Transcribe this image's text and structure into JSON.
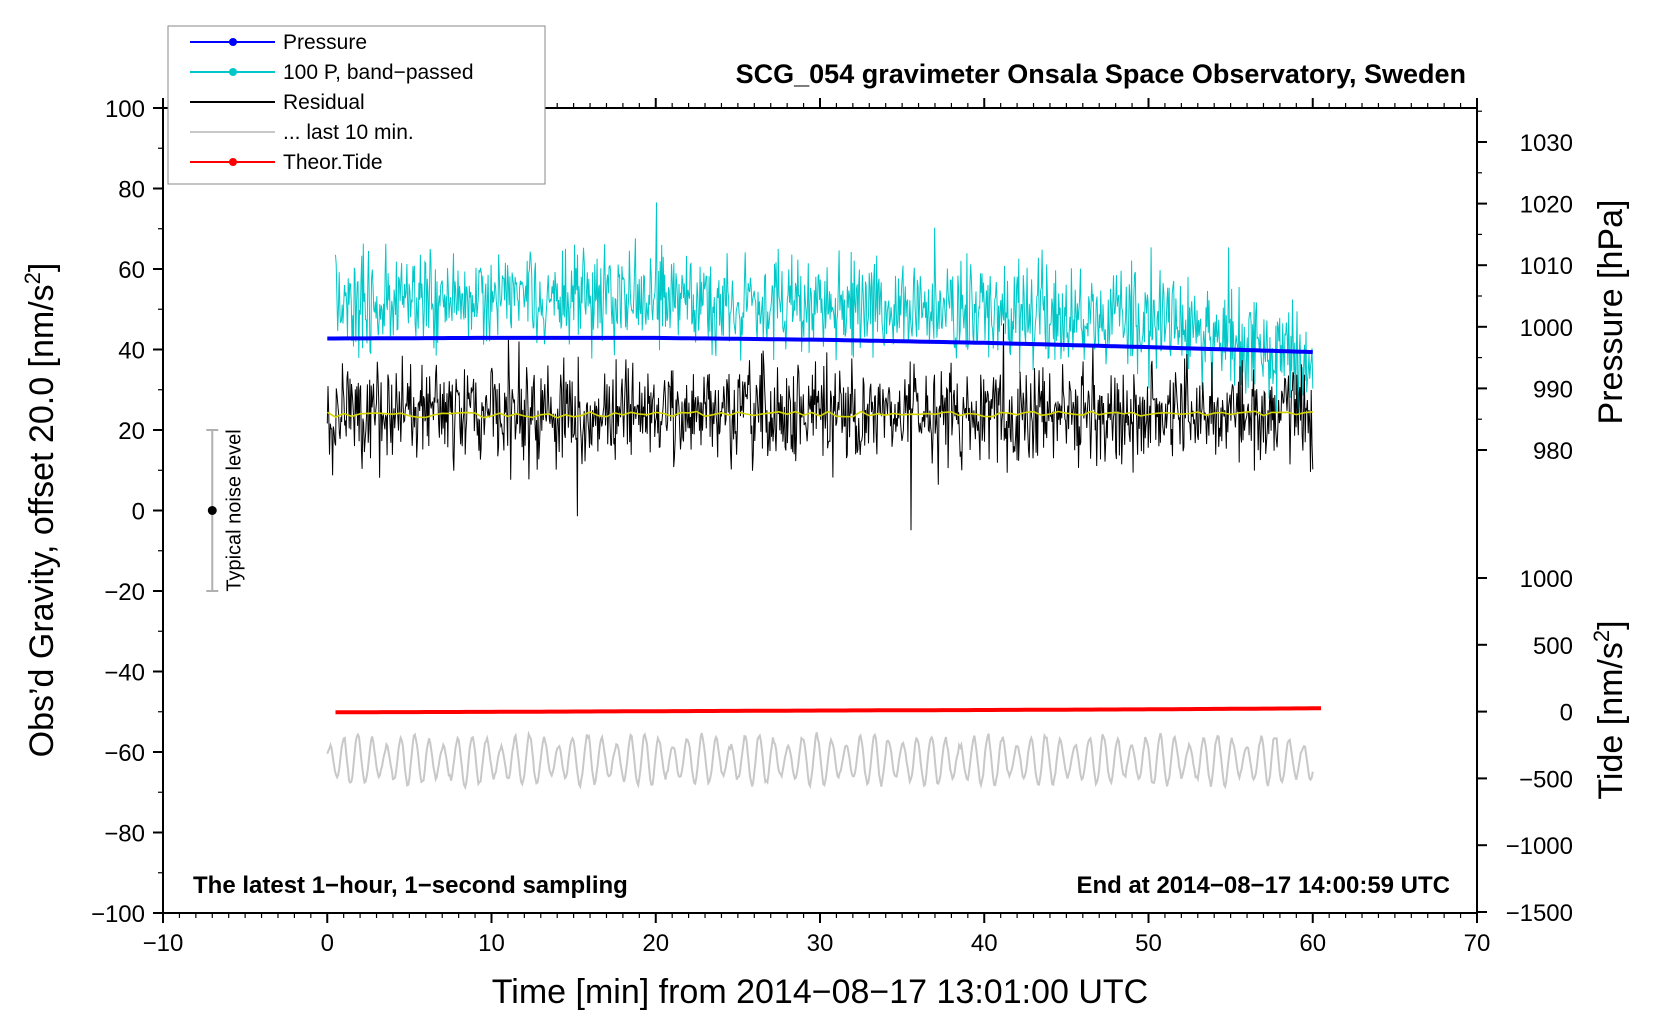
{
  "chart_data": {
    "type": "line",
    "title": "SCG_054 gravimeter Onsala Space Observatory, Sweden",
    "xlabel": "Time [min] from 2014−08−17 13:01:00 UTC",
    "ylabel": "Obs’d Gravity, offset 20.0 [nm/s",
    "ylabel_sup": "2",
    "ylabel_tail": "]",
    "ylabel_right_pressure": "Pressure [hPa]",
    "ylabel_right_tide": "Tide [nm/s",
    "ylabel_right_tide_sup": "2",
    "ylabel_right_tide_tail": "]",
    "xlim": [
      -10,
      70
    ],
    "ylim": [
      -100,
      100
    ],
    "pressure_axis_range": [
      980,
      1030
    ],
    "tide_axis_range": [
      -1500,
      1000
    ],
    "x_ticks": [
      "−10",
      "0",
      "10",
      "20",
      "30",
      "40",
      "50",
      "60",
      "70"
    ],
    "y_ticks": [
      "−100",
      "−80",
      "−60",
      "−40",
      "−20",
      "0",
      "20",
      "40",
      "60",
      "80",
      "100"
    ],
    "pressure_ticks": [
      "980",
      "990",
      "1000",
      "1010",
      "1020",
      "1030"
    ],
    "tide_ticks": [
      "−1500",
      "−1000",
      "−500",
      "0",
      "500",
      "1000"
    ],
    "legend": [
      {
        "label": "Pressure",
        "color": "#0000ff",
        "marker": true
      },
      {
        "label": "100 P, band−passed",
        "color": "#00c8c8",
        "marker": true
      },
      {
        "label": "Residual",
        "color": "#000000",
        "marker": false
      },
      {
        "label": "... last 10 min.",
        "color": "#c8c8c8",
        "marker": false
      },
      {
        "label": "Theor.Tide",
        "color": "#ff0000",
        "marker": true
      }
    ],
    "legend_position": "top-left",
    "annotations": {
      "left_note": "The latest 1−hour, 1−second sampling",
      "right_note": "End at 2014−08−17 14:00:59 UTC",
      "noise_label": "Typical noise level"
    },
    "noise_bar": {
      "x": -7,
      "center": 0,
      "low": -20,
      "high": 20
    },
    "series": [
      {
        "name": "Pressure",
        "color": "#0000ff",
        "axis": "pressure",
        "style": "thick",
        "x": [
          0,
          10,
          20,
          30,
          40,
          50,
          60
        ],
        "y": [
          998.1,
          998.2,
          998.2,
          997.9,
          997.4,
          996.7,
          995.9
        ]
      },
      {
        "name": "100 P, band−passed",
        "color": "#00c8c8",
        "axis": "gravity",
        "style": "noisy",
        "x": [
          0.5,
          10,
          20,
          30,
          40,
          45,
          50,
          55,
          60
        ],
        "y": [
          52,
          53,
          52,
          51,
          50,
          48,
          49,
          42,
          38
        ],
        "amplitude": 6
      },
      {
        "name": "Residual",
        "color": "#000000",
        "axis": "gravity",
        "style": "noisy",
        "x": [
          0,
          10,
          20,
          30,
          40,
          50,
          60
        ],
        "y": [
          24,
          24,
          24,
          24,
          24,
          24,
          24
        ],
        "amplitude": 6
      },
      {
        "name": "smoothed residual",
        "color": "#d4d400",
        "axis": "gravity",
        "style": "thin",
        "x": [
          0,
          10,
          20,
          30,
          40,
          50,
          60
        ],
        "y": [
          23.8,
          23.6,
          23.9,
          24.0,
          23.8,
          24.1,
          24.2
        ]
      },
      {
        "name": "... last 10 min.",
        "color": "#c8c8c8",
        "axis": "gravity",
        "style": "oscillating",
        "x": [
          0,
          10,
          20,
          30,
          40,
          50,
          60
        ],
        "y": [
          -62,
          -62,
          -62,
          -62,
          -62,
          -62,
          -62
        ],
        "amplitude": 5
      },
      {
        "name": "Theor.Tide",
        "color": "#ff0000",
        "axis": "tide",
        "style": "thick",
        "x": [
          0.5,
          10,
          20,
          30,
          40,
          50,
          60.5
        ],
        "y": [
          -5,
          -2,
          3,
          8,
          12,
          17,
          25
        ]
      }
    ]
  }
}
